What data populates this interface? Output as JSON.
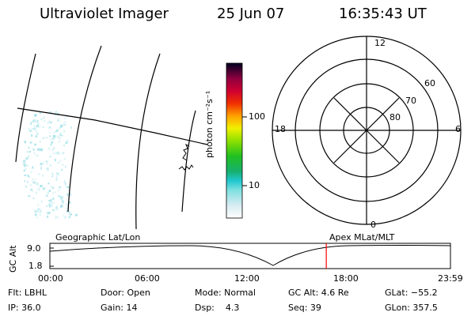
{
  "header": {
    "title": "Ultraviolet Imager",
    "date": "25 Jun 07",
    "time": "16:35:43 UT"
  },
  "colorbar": {
    "unit_label": "photon cm⁻²s⁻¹",
    "ticks": [
      "100",
      "10"
    ]
  },
  "polar": {
    "mlt_labels": [
      "12",
      "18",
      "6",
      "0"
    ],
    "lat_labels": [
      "60",
      "70",
      "80"
    ]
  },
  "timeline": {
    "left_label": "Geographic Lat/Lon",
    "right_label": "Apex MLat/MLT",
    "y_axis_label": "GC Alt",
    "y_ticks": [
      "9.0",
      "1.8"
    ],
    "x_ticks": [
      "00:00",
      "06:00",
      "12:00",
      "18:00",
      "23:59"
    ],
    "marker_color": "#ff0000",
    "marker_time_fraction": 0.69
  },
  "footer": {
    "row1": {
      "filter": "Flt: LBHL",
      "door": "Door: Open",
      "mode": "Mode: Normal",
      "gc_alt": "GC Alt: 4.6 Re",
      "glat": "GLat: −55.2"
    },
    "row2": {
      "ip": "IP: 36.0",
      "gain": "Gain: 14",
      "dsp": "Dsp:    4.3",
      "seq": "Seq: 39",
      "glon": "GLon: 357.5"
    }
  }
}
